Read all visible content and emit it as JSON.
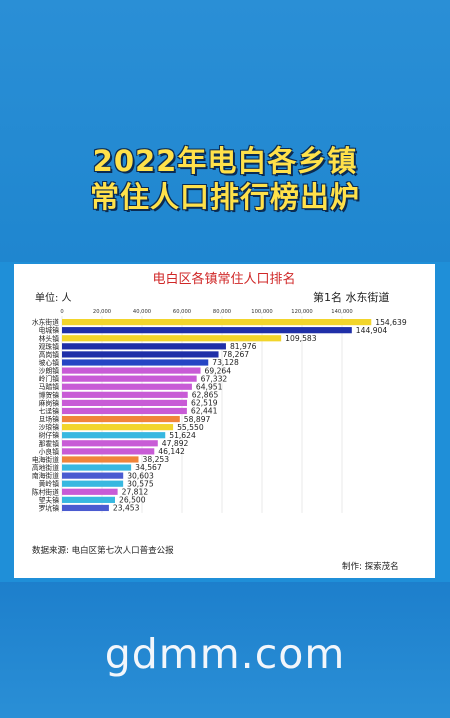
{
  "headline": {
    "line1": "2022年电白各乡镇",
    "line2": "常住人口排行榜出炉"
  },
  "chart_data": {
    "type": "bar",
    "orientation": "horizontal",
    "title": "电白区各镇常住人口排名",
    "unit_label": "单位: 人",
    "rank_label": "第1名 水东街道",
    "source": "数据来源: 电白区第七次人口普查公报",
    "credit": "制作: 探索茂名",
    "xlim": [
      0,
      150000
    ],
    "x_ticks": [
      "0",
      "20,000",
      "40,000",
      "60,000",
      "80,000",
      "100,000",
      "120,000",
      "140,000"
    ],
    "x_tick_values": [
      0,
      20000,
      40000,
      60000,
      80000,
      100000,
      120000,
      140000
    ],
    "categories": [
      "水东街道",
      "电城镇",
      "林头镇",
      "观珠镇",
      "高岗镇",
      "坡心镇",
      "沙朗镇",
      "岭门镇",
      "马踏镇",
      "博贺镇",
      "麻岗镇",
      "七迳镇",
      "旦场镇",
      "沙琅镇",
      "树仔镇",
      "那霍镇",
      "小良镇",
      "电海街道",
      "高地街道",
      "南海街道",
      "黄岭镇",
      "陈村街道",
      "望夫镇",
      "罗坑镇"
    ],
    "values": [
      154639,
      144904,
      109583,
      81976,
      78267,
      73128,
      69264,
      67332,
      64951,
      62865,
      62519,
      62441,
      58897,
      55550,
      51624,
      47892,
      46142,
      38253,
      34567,
      30603,
      30575,
      27812,
      26500,
      23453
    ],
    "value_labels": [
      "154,639",
      "144,904",
      "109,583",
      "81,976",
      "78,267",
      "73,128",
      "69,264",
      "67,332",
      "64,951",
      "62,865",
      "62,519",
      "62,441",
      "58,897",
      "55,550",
      "51,624",
      "47,892",
      "46,142",
      "38,253",
      "34,567",
      "30,603",
      "30,575",
      "27,812",
      "26,500",
      "23,453"
    ],
    "colors": [
      "#f2d52b",
      "#1f2fa8",
      "#f2d52b",
      "#1f2fa8",
      "#1f2fa8",
      "#2545c4",
      "#c85bd6",
      "#c85bd6",
      "#c85bd6",
      "#c85bd6",
      "#c85bd6",
      "#c85bd6",
      "#f0843a",
      "#f2d52b",
      "#38b8e0",
      "#c85bd6",
      "#c85bd6",
      "#f0843a",
      "#38b8e0",
      "#4a5bd0",
      "#38b8e0",
      "#c85bd6",
      "#38b8e0",
      "#4a5bd0"
    ],
    "grid": true
  },
  "watermark": "gdmm.com"
}
